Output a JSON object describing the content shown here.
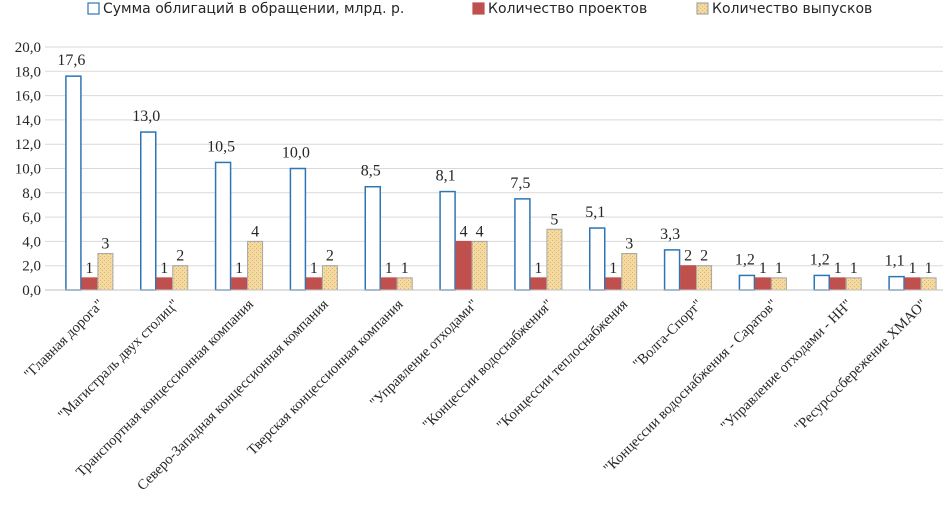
{
  "chart_data": {
    "type": "bar",
    "title": "",
    "xlabel": "",
    "ylabel": "",
    "ylim": [
      0,
      20
    ],
    "yticks": [
      "0,0",
      "2,0",
      "4,0",
      "6,0",
      "8,0",
      "10,0",
      "12,0",
      "14,0",
      "16,0",
      "18,0",
      "20,0"
    ],
    "grid": true,
    "legend_position": "top",
    "categories": [
      "\"Главная дорога\"",
      "\"Магистраль двух столиц\"",
      "Транспортная концессионная компания",
      "Северо-Западная концессионная компания",
      "Тверская концессионная компания",
      "\"Управление отходами\"",
      "\"Концессии водоснабжения\"",
      "\"Концессии теплоснабжения",
      "\"Волга-Спорт\"",
      "\"Концессии водоснабжения - Саратов\"",
      "\"Управление отходами - НН\"",
      "\"Ресурсосбережение ХМАО\""
    ],
    "series": [
      {
        "name": "Сумма облигаций в обращении, млрд. р.",
        "color": "#ffffff",
        "stroke": "#2e75b6",
        "values": [
          17.6,
          13.0,
          10.5,
          10.0,
          8.5,
          8.1,
          7.5,
          5.1,
          3.3,
          1.2,
          1.2,
          1.1
        ],
        "labels": [
          "17,6",
          "13,0",
          "10,5",
          "10,0",
          "8,5",
          "8,1",
          "7,5",
          "5,1",
          "3,3",
          "1,2",
          "1,2",
          "1,1"
        ]
      },
      {
        "name": "Количество проектов",
        "color": "#c0504d",
        "stroke": "#c0504d",
        "values": [
          1,
          1,
          1,
          1,
          1,
          4,
          1,
          1,
          2,
          1,
          1,
          1
        ],
        "labels": [
          "1",
          "1",
          "1",
          "1",
          "1",
          "4",
          "1",
          "1",
          "2",
          "1",
          "1",
          "1"
        ]
      },
      {
        "name": "Количество выпусков",
        "color": "#f4d9a0",
        "stroke": "#a6a6a6",
        "values": [
          3,
          2,
          4,
          2,
          1,
          4,
          5,
          3,
          2,
          1,
          1,
          1
        ],
        "labels": [
          "3",
          "2",
          "4",
          "2",
          "1",
          "4",
          "5",
          "3",
          "2",
          "1",
          "1",
          "1"
        ]
      }
    ]
  }
}
